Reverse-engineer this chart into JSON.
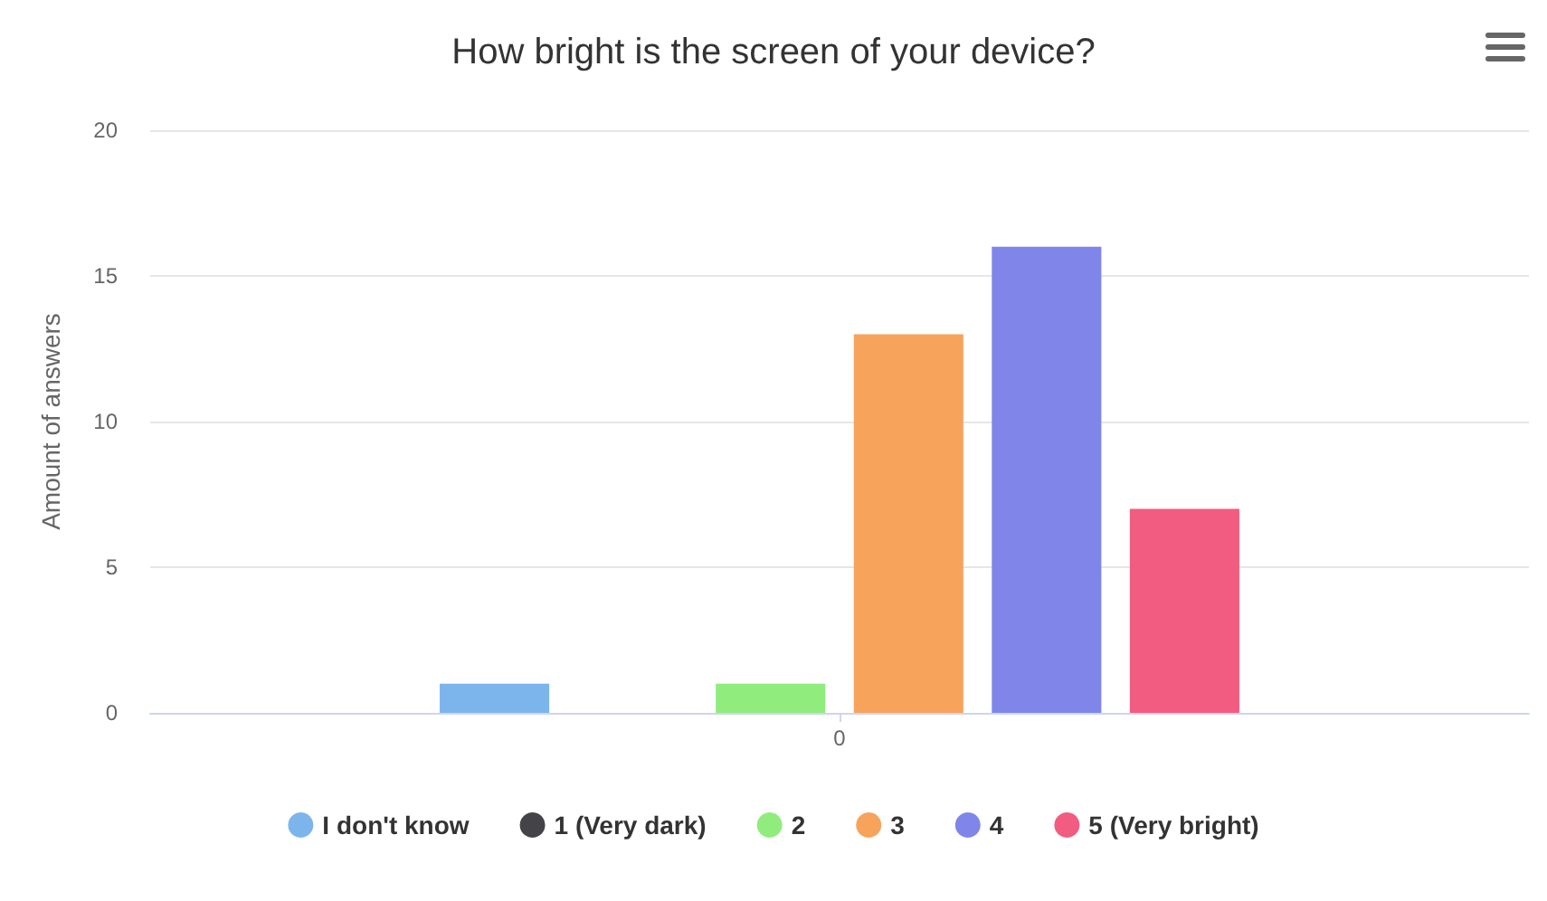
{
  "chart_data": {
    "type": "bar",
    "title": "How bright is the screen of your device?",
    "ylabel": "Amount of answers",
    "categories": [
      "0"
    ],
    "series": [
      {
        "name": "I don't know",
        "color": "#7cb5ec",
        "values": [
          1
        ]
      },
      {
        "name": "1 (Very dark)",
        "color": "#434348",
        "values": [
          0
        ]
      },
      {
        "name": "2",
        "color": "#90ed7d",
        "values": [
          1
        ]
      },
      {
        "name": "3",
        "color": "#f7a35c",
        "values": [
          13
        ]
      },
      {
        "name": "4",
        "color": "#8085e9",
        "values": [
          16
        ]
      },
      {
        "name": "5 (Very bright)",
        "color": "#f15c80",
        "values": [
          7
        ]
      }
    ],
    "ylim": [
      0,
      20
    ],
    "yticks": [
      0,
      5,
      10,
      15,
      20
    ],
    "grid": "y",
    "legend": "bottom"
  }
}
